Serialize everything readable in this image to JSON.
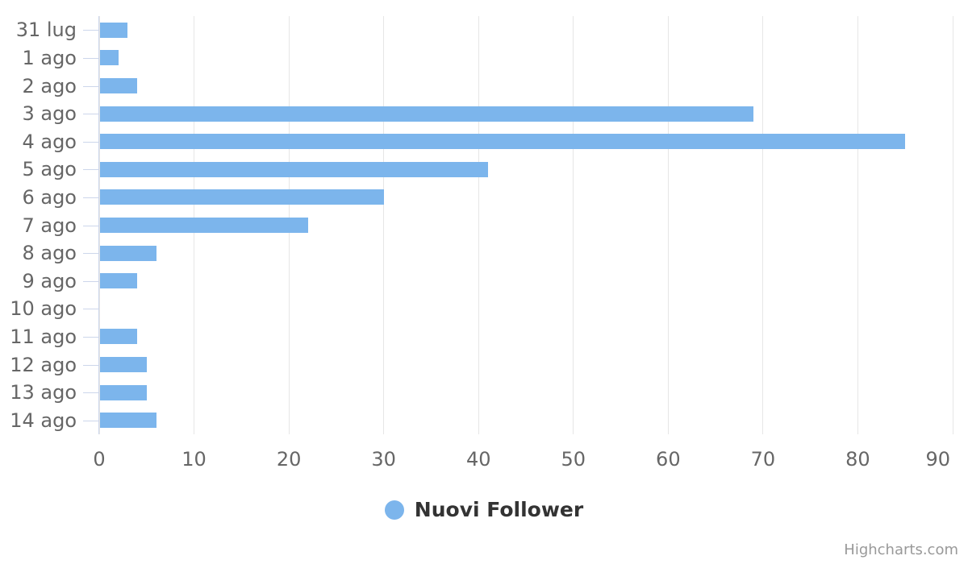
{
  "chart_data": {
    "type": "bar",
    "orientation": "horizontal",
    "title": "",
    "xlabel": "",
    "ylabel": "",
    "categories": [
      "31 lug",
      "1 ago",
      "2 ago",
      "3 ago",
      "4 ago",
      "5 ago",
      "6 ago",
      "7 ago",
      "8 ago",
      "9 ago",
      "10 ago",
      "11 ago",
      "12 ago",
      "13 ago",
      "14 ago"
    ],
    "series": [
      {
        "name": "Nuovi Follower",
        "values": [
          3,
          2,
          4,
          69,
          85,
          41,
          30,
          22,
          6,
          4,
          0,
          4,
          5,
          5,
          6
        ]
      }
    ],
    "value_axis": {
      "min": 0,
      "max": 90,
      "tick_interval": 10,
      "ticks": [
        0,
        10,
        20,
        30,
        40,
        50,
        60,
        70,
        80,
        90
      ]
    },
    "grid": true,
    "legend_position": "bottom-center",
    "colors": {
      "bar": "#7cb5ec",
      "grid": "#e6e6e6",
      "axis_line": "#ccd6eb",
      "axis_label": "#666666",
      "legend_text": "#333333",
      "credits_text": "#999999"
    }
  },
  "legend": {
    "items": [
      {
        "label": "Nuovi Follower",
        "color": "#7cb5ec"
      }
    ]
  },
  "credits": {
    "label": "Highcharts.com"
  }
}
